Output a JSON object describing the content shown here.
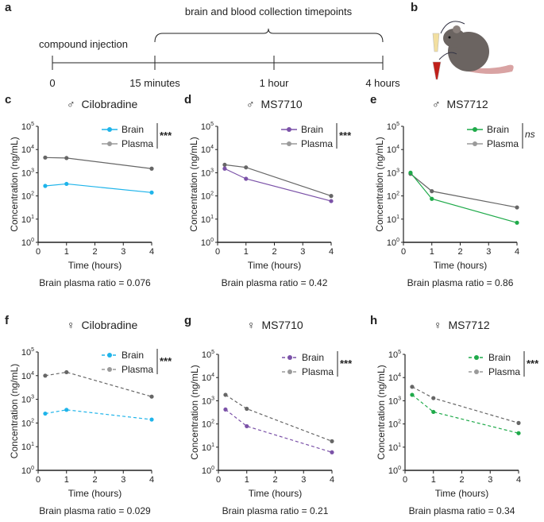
{
  "panel_a": {
    "label": "a",
    "bracket_label": "brain and blood collection timepoints",
    "event_label": "compound injection",
    "timepoints": [
      "0",
      "15 minutes",
      "1 hour",
      "4 hours"
    ]
  },
  "panel_b": {
    "label": "b",
    "illustration": "mouse-with-sample-tubes-icon"
  },
  "colors": {
    "cilobradine": "#1fb4ea",
    "ms7710": "#7b52a8",
    "ms7712": "#1faa4a",
    "plasma": "#9a9a9a",
    "plasma_line": "#666666"
  },
  "chart_data": [
    {
      "panel": "c",
      "sex": "♂",
      "compound": "Cilobradine",
      "type": "line",
      "line_style": "solid",
      "xlabel": "Time (hours)",
      "ylabel": "Concentration (ng/mL)",
      "xlim": [
        0,
        4
      ],
      "xticks": [
        0,
        1,
        2,
        3,
        4
      ],
      "ylim": [
        1,
        100000
      ],
      "yscale": "log",
      "yticks": [
        "10^0",
        "10^1",
        "10^2",
        "10^3",
        "10^4",
        "10^5"
      ],
      "x": [
        0.25,
        1,
        4
      ],
      "series": [
        {
          "name": "Brain",
          "color": "#1fb4ea",
          "values": [
            270,
            330,
            140
          ]
        },
        {
          "name": "Plasma",
          "color": "#9a9a9a",
          "values": [
            4500,
            4300,
            1500
          ]
        }
      ],
      "significance": "***",
      "ratio_text": "Brain plasma ratio = 0.076"
    },
    {
      "panel": "d",
      "sex": "♂",
      "compound": "MS7710",
      "type": "line",
      "line_style": "solid",
      "xlabel": "Time (hours)",
      "ylabel": "Concentration (ng/mL)",
      "xlim": [
        0,
        4
      ],
      "xticks": [
        0,
        1,
        2,
        3,
        4
      ],
      "ylim": [
        1,
        100000
      ],
      "yscale": "log",
      "yticks": [
        "10^0",
        "10^1",
        "10^2",
        "10^3",
        "10^4",
        "10^5"
      ],
      "x": [
        0.25,
        1,
        4
      ],
      "series": [
        {
          "name": "Brain",
          "color": "#7b52a8",
          "values": [
            1500,
            550,
            60
          ]
        },
        {
          "name": "Plasma",
          "color": "#9a9a9a",
          "values": [
            2200,
            1700,
            100
          ]
        }
      ],
      "significance": "***",
      "ratio_text": "Brain plasma ratio = 0.42"
    },
    {
      "panel": "e",
      "sex": "♂",
      "compound": "MS7712",
      "type": "line",
      "line_style": "solid",
      "xlabel": "Time (hours)",
      "ylabel": "Concentration (ng/mL)",
      "xlim": [
        0,
        4
      ],
      "xticks": [
        0,
        1,
        2,
        3,
        4
      ],
      "ylim": [
        1,
        100000
      ],
      "yscale": "log",
      "yticks": [
        "10^0",
        "10^1",
        "10^2",
        "10^3",
        "10^4",
        "10^5"
      ],
      "x": [
        0.25,
        1,
        4
      ],
      "series": [
        {
          "name": "Brain",
          "color": "#1faa4a",
          "values": [
            1000,
            75,
            7
          ]
        },
        {
          "name": "Plasma",
          "color": "#9a9a9a",
          "values": [
            900,
            160,
            32
          ]
        }
      ],
      "significance": "ns",
      "ratio_text": "Brain plasma ratio = 0.86"
    },
    {
      "panel": "f",
      "sex": "♀",
      "compound": "Cilobradine",
      "type": "line",
      "line_style": "dashed",
      "xlabel": "Time (hours)",
      "ylabel": "Concentration (ng/mL)",
      "xlim": [
        0,
        4
      ],
      "xticks": [
        0,
        1,
        2,
        3,
        4
      ],
      "ylim": [
        1,
        100000
      ],
      "yscale": "log",
      "yticks": [
        "10^0",
        "10^1",
        "10^2",
        "10^3",
        "10^4",
        "10^5"
      ],
      "x": [
        0.25,
        1,
        4
      ],
      "series": [
        {
          "name": "Brain",
          "color": "#1fb4ea",
          "values": [
            250,
            360,
            140
          ]
        },
        {
          "name": "Plasma",
          "color": "#9a9a9a",
          "values": [
            10000,
            14000,
            1300
          ]
        }
      ],
      "significance": "***",
      "ratio_text": "Brain plasma ratio = 0.029"
    },
    {
      "panel": "g",
      "sex": "♀",
      "compound": "MS7710",
      "type": "line",
      "line_style": "dashed",
      "xlabel": "Time (hours)",
      "ylabel": "Concentration (ng/mL)",
      "xlim": [
        0,
        4
      ],
      "xticks": [
        0,
        1,
        2,
        3,
        4
      ],
      "ylim": [
        1,
        100000
      ],
      "yscale": "log",
      "yticks": [
        "10^0",
        "10^1",
        "10^2",
        "10^3",
        "10^4",
        "10^5"
      ],
      "x": [
        0.25,
        1,
        4
      ],
      "series": [
        {
          "name": "Brain",
          "color": "#7b52a8",
          "values": [
            420,
            80,
            6
          ]
        },
        {
          "name": "Plasma",
          "color": "#9a9a9a",
          "values": [
            1800,
            450,
            18
          ]
        }
      ],
      "significance": "***",
      "ratio_text": "Brain plasma ratio = 0.21"
    },
    {
      "panel": "h",
      "sex": "♀",
      "compound": "MS7712",
      "type": "line",
      "line_style": "dashed",
      "xlabel": "Time (hours)",
      "ylabel": "Concentration (ng/mL)",
      "xlim": [
        0,
        4
      ],
      "xticks": [
        0,
        1,
        2,
        3,
        4
      ],
      "ylim": [
        1,
        100000
      ],
      "yscale": "log",
      "yticks": [
        "10^0",
        "10^1",
        "10^2",
        "10^3",
        "10^4",
        "10^5"
      ],
      "x": [
        0.25,
        1,
        4
      ],
      "series": [
        {
          "name": "Brain",
          "color": "#1faa4a",
          "values": [
            1800,
            330,
            40
          ]
        },
        {
          "name": "Plasma",
          "color": "#9a9a9a",
          "values": [
            4000,
            1300,
            110
          ]
        }
      ],
      "significance": "***",
      "ratio_text": "Brain plasma ratio = 0.34"
    }
  ]
}
